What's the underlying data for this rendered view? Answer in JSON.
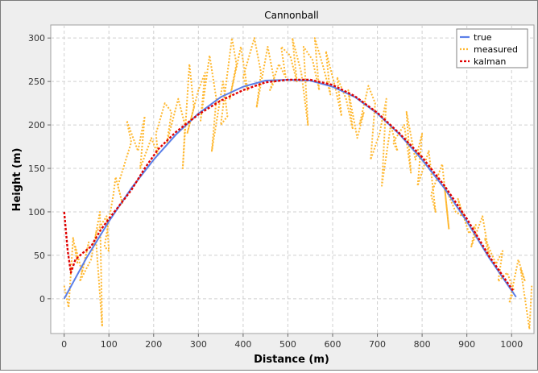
{
  "chart_data": {
    "type": "line",
    "title": "Cannonball",
    "xlabel": "Distance (m)",
    "ylabel": "Height (m)",
    "xlim": [
      -30,
      1050
    ],
    "ylim": [
      -40,
      315
    ],
    "xticks": [
      0,
      100,
      200,
      300,
      400,
      500,
      600,
      700,
      800,
      900,
      1000
    ],
    "yticks": [
      0,
      50,
      100,
      150,
      200,
      250,
      300
    ],
    "grid": true,
    "legend_position": "top-right",
    "series": [
      {
        "name": "true",
        "color": "#5b7fe8",
        "style": "solid",
        "x": [
          0,
          50,
          100,
          150,
          200,
          250,
          300,
          350,
          400,
          450,
          500,
          550,
          600,
          650,
          700,
          750,
          800,
          850,
          900,
          950,
          1010
        ],
        "y": [
          0,
          47,
          89,
          127,
          160,
          189,
          213,
          232,
          244,
          251,
          252,
          251,
          244,
          232,
          213,
          189,
          160,
          127,
          89,
          47,
          2
        ]
      },
      {
        "name": "measured",
        "color": "#ffb830",
        "style": "dotted",
        "x": [
          0,
          10,
          20,
          30,
          25,
          40,
          55,
          35,
          60,
          80,
          85,
          70,
          95,
          100,
          90,
          110,
          115,
          130,
          120,
          150,
          140,
          165,
          180,
          170,
          195,
          210,
          205,
          225,
          240,
          230,
          255,
          270,
          265,
          280,
          290,
          275,
          300,
          315,
          305,
          325,
          340,
          330,
          355,
          365,
          350,
          375,
          385,
          370,
          395,
          410,
          400,
          425,
          440,
          430,
          455,
          470,
          460,
          480,
          495,
          485,
          505,
          520,
          510,
          530,
          545,
          535,
          555,
          570,
          560,
          580,
          595,
          585,
          605,
          620,
          610,
          630,
          645,
          635,
          655,
          670,
          660,
          680,
          695,
          685,
          705,
          720,
          710,
          730,
          745,
          735,
          760,
          775,
          765,
          785,
          800,
          790,
          815,
          830,
          820,
          845,
          860,
          850,
          875,
          890,
          880,
          905,
          920,
          910,
          935,
          950,
          940,
          965,
          980,
          970,
          990,
          1005,
          995,
          1015,
          1030,
          1020,
          1040,
          1045
        ],
        "y": [
          15,
          -10,
          70,
          40,
          60,
          30,
          65,
          20,
          45,
          100,
          -32,
          75,
          95,
          55,
          60,
          120,
          140,
          110,
          130,
          180,
          205,
          170,
          210,
          150,
          185,
          165,
          190,
          225,
          215,
          180,
          230,
          200,
          150,
          270,
          220,
          190,
          240,
          260,
          205,
          280,
          230,
          170,
          250,
          210,
          200,
          300,
          270,
          230,
          290,
          240,
          255,
          300,
          260,
          220,
          290,
          250,
          240,
          270,
          255,
          290,
          280,
          250,
          300,
          260,
          200,
          290,
          275,
          240,
          300,
          265,
          235,
          285,
          245,
          210,
          255,
          230,
          195,
          240,
          185,
          215,
          200,
          245,
          225,
          160,
          190,
          230,
          130,
          200,
          170,
          180,
          200,
          145,
          215,
          160,
          190,
          130,
          170,
          100,
          120,
          155,
          80,
          130,
          100,
          95,
          115,
          75,
          85,
          60,
          95,
          50,
          70,
          40,
          55,
          20,
          30,
          10,
          -5,
          45,
          20,
          35,
          -35,
          15
        ]
      },
      {
        "name": "kalman",
        "color": "#e00000",
        "style": "dashed",
        "x": [
          0,
          8,
          15,
          25,
          40,
          60,
          80,
          100,
          120,
          150,
          180,
          210,
          250,
          300,
          350,
          400,
          450,
          500,
          550,
          600,
          650,
          700,
          750,
          800,
          850,
          900,
          950,
          1005
        ],
        "y": [
          100,
          55,
          30,
          45,
          52,
          60,
          78,
          92,
          105,
          125,
          150,
          172,
          192,
          212,
          228,
          240,
          249,
          252,
          252,
          246,
          233,
          214,
          190,
          163,
          130,
          92,
          49,
          8
        ]
      }
    ]
  }
}
